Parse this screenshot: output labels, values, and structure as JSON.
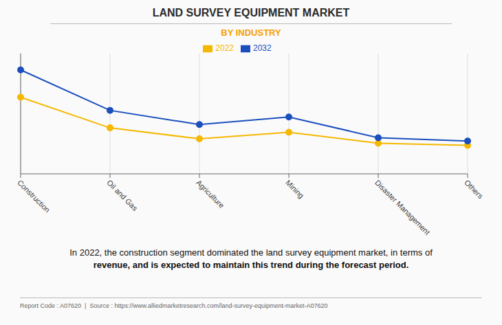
{
  "chart_data": {
    "type": "line",
    "title": "LAND SURVEY EQUIPMENT MARKET",
    "subtitle": "BY INDUSTRY",
    "categories": [
      "Construction",
      "Oil and Gas",
      "Agriculture",
      "Mining",
      "Disaster Management",
      "Others"
    ],
    "series": [
      {
        "name": "2022",
        "color": "#F5B800",
        "values": [
          7.0,
          4.2,
          3.2,
          3.8,
          2.8,
          2.6
        ],
        "marker": "circle",
        "line_style": "solid"
      },
      {
        "name": "2032",
        "color": "#1B4FBE",
        "values": [
          9.5,
          5.8,
          4.5,
          5.2,
          3.3,
          3.0
        ],
        "marker": "circle",
        "line_style": "solid"
      }
    ],
    "ylim": [
      0,
      11
    ],
    "grid": true,
    "legend": "top",
    "tick_labels": "x",
    "annotations": [
      "In 2022, the construction segment dominated the land survey equipment market, in terms of",
      "revenue, and is expected to maintain this trend during the forecast period.",
      "Report Code : A07620  |  Source : https://www.alliedmarketresearch.com/land-survey-equipment-market-A07620"
    ]
  }
}
